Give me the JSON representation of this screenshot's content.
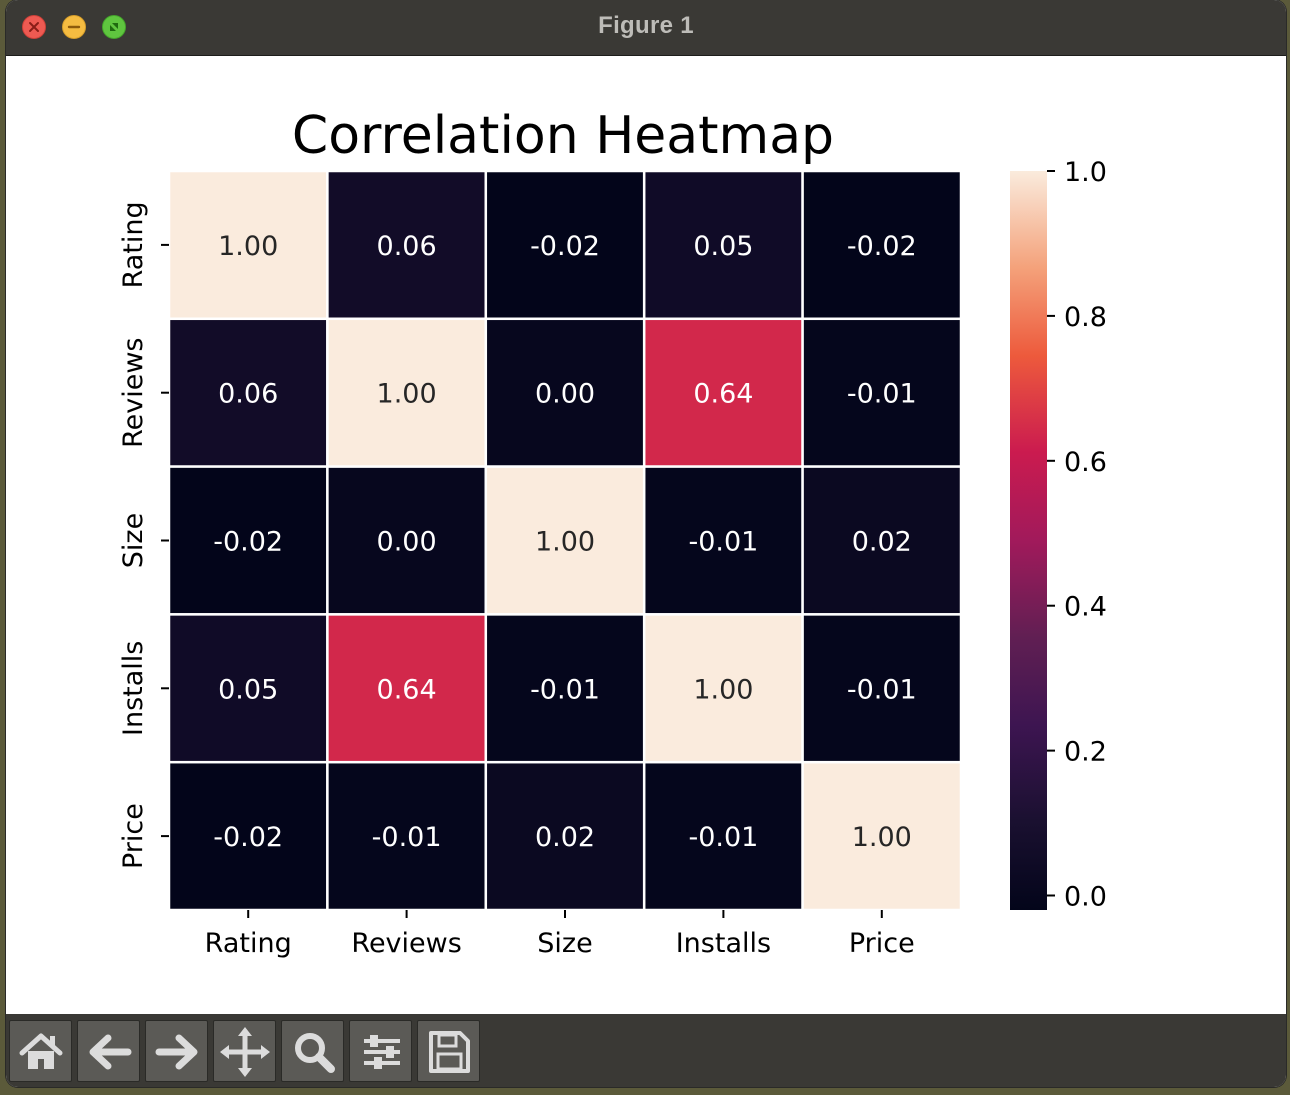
{
  "window": {
    "title": "Figure 1"
  },
  "toolbar": {
    "buttons": [
      {
        "name": "home-button",
        "icon": "home-icon"
      },
      {
        "name": "back-button",
        "icon": "arrow-left-icon"
      },
      {
        "name": "forward-button",
        "icon": "arrow-right-icon"
      },
      {
        "name": "pan-button",
        "icon": "move-icon"
      },
      {
        "name": "zoom-button",
        "icon": "magnifier-icon"
      },
      {
        "name": "configure-subplots-button",
        "icon": "sliders-icon"
      },
      {
        "name": "save-button",
        "icon": "floppy-disk-icon"
      }
    ]
  },
  "chart_data": {
    "type": "heatmap",
    "title": "Correlation Heatmap",
    "xlabel": "",
    "ylabel": "",
    "x_categories": [
      "Rating",
      "Reviews",
      "Size",
      "Installs",
      "Price"
    ],
    "y_categories": [
      "Rating",
      "Reviews",
      "Size",
      "Installs",
      "Price"
    ],
    "values": [
      [
        1.0,
        0.06,
        -0.02,
        0.05,
        -0.02
      ],
      [
        0.06,
        1.0,
        0.0,
        0.64,
        -0.01
      ],
      [
        -0.02,
        0.0,
        1.0,
        -0.01,
        0.02
      ],
      [
        0.05,
        0.64,
        -0.01,
        1.0,
        -0.01
      ],
      [
        -0.02,
        -0.01,
        0.02,
        -0.01,
        1.0
      ]
    ],
    "annotations": [
      [
        "1.00",
        "0.06",
        "-0.02",
        "0.05",
        "-0.02"
      ],
      [
        "0.06",
        "1.00",
        "0.00",
        "0.64",
        "-0.01"
      ],
      [
        "-0.02",
        "0.00",
        "1.00",
        "-0.01",
        "0.02"
      ],
      [
        "0.05",
        "0.64",
        "-0.01",
        "1.00",
        "-0.01"
      ],
      [
        "-0.02",
        "-0.01",
        "0.02",
        "-0.01",
        "1.00"
      ]
    ],
    "colormap": "rocket",
    "vmin": -0.02,
    "vmax": 1.0,
    "colorbar": {
      "ticks": [
        0.0,
        0.2,
        0.4,
        0.6,
        0.8,
        1.0
      ],
      "tick_labels": [
        "0.0",
        "0.2",
        "0.4",
        "0.6",
        "0.8",
        "1.0"
      ]
    },
    "grid_line_color": "#ffffff",
    "legend": "colorbar-right"
  }
}
